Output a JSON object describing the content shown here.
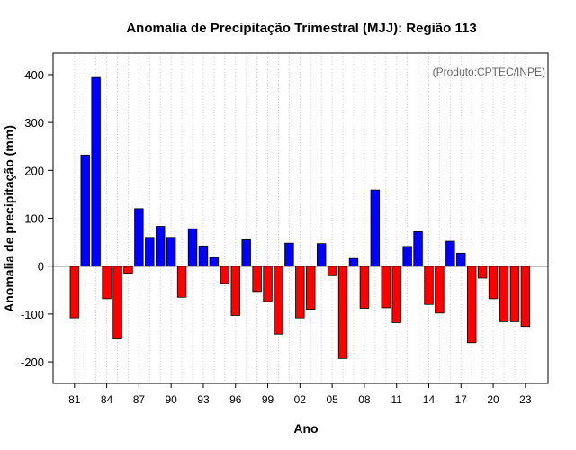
{
  "chart_data": {
    "type": "bar",
    "title": "Anomalia de Precipitação Trimestral (MJJ): Região 113",
    "xlabel": "Ano",
    "ylabel": "Anomalia de precipitação (mm)",
    "annotation": "(Produto:CPTEC/INPE)",
    "ylim": [
      -245,
      445
    ],
    "yticks": [
      -200,
      -100,
      0,
      100,
      200,
      300,
      400
    ],
    "xtick_labels": [
      "81",
      "84",
      "87",
      "90",
      "93",
      "96",
      "99",
      "02",
      "05",
      "08",
      "11",
      "14",
      "17",
      "20",
      "23"
    ],
    "x": [
      1981,
      1982,
      1983,
      1984,
      1985,
      1986,
      1987,
      1988,
      1989,
      1990,
      1991,
      1992,
      1993,
      1994,
      1995,
      1996,
      1997,
      1998,
      1999,
      2000,
      2001,
      2002,
      2003,
      2004,
      2005,
      2006,
      2007,
      2008,
      2009,
      2010,
      2011,
      2012,
      2013,
      2014,
      2015,
      2016,
      2017,
      2018,
      2019,
      2020,
      2021,
      2022,
      2023
    ],
    "values": [
      -108,
      232,
      394,
      -68,
      -152,
      -15,
      120,
      60,
      83,
      60,
      -65,
      78,
      42,
      18,
      -36,
      -103,
      55,
      -53,
      -74,
      -142,
      48,
      -108,
      -90,
      47,
      -20,
      -193,
      16,
      -88,
      159,
      -87,
      -118,
      41,
      72,
      -80,
      -98,
      52,
      27,
      -160,
      -25,
      -68,
      -116,
      -116,
      -126
    ],
    "colors": {
      "positive": "#0000ff",
      "negative": "#ff0000",
      "axis": "#000000",
      "grid": "#d3d3d3"
    }
  }
}
